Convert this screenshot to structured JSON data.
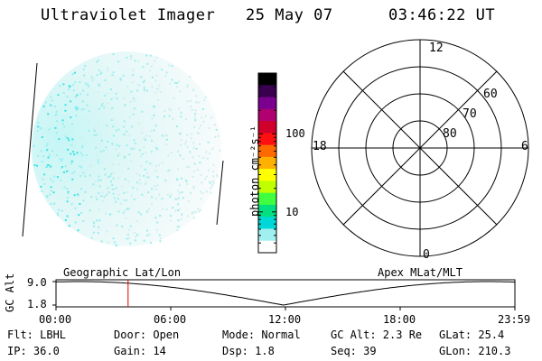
{
  "header": {
    "instrument": "Ultraviolet Imager",
    "date": "25 May 07",
    "time": "03:46:22 UT"
  },
  "colorbar": {
    "label": "photon cm⁻²s⁻¹",
    "ticks": [
      {
        "value": 10,
        "label": "10"
      },
      {
        "value": 100,
        "label": "100"
      }
    ],
    "range": [
      3,
      600
    ],
    "colors": [
      "#000000",
      "#3a0050",
      "#7a0090",
      "#b00070",
      "#d0002a",
      "#ff1010",
      "#ff6a00",
      "#ffb000",
      "#ffff00",
      "#c0ff00",
      "#40ff40",
      "#00e080",
      "#00d8d8",
      "#a0f0f0",
      "#ffffff"
    ]
  },
  "polar_plot": {
    "mlt_labels": {
      "top": "12",
      "left": "18",
      "right": "6",
      "bottom": "0"
    },
    "lat_labels": [
      "60",
      "70",
      "80"
    ]
  },
  "timeline": {
    "left_label": "Geographic Lat/Lon",
    "right_label": "Apex MLat/MLT",
    "y_axis_title": "GC Alt",
    "y_ticks": [
      "9.0",
      "1.8"
    ],
    "x_ticks": [
      "00:00",
      "06:00",
      "12:00",
      "18:00",
      "23:59"
    ],
    "marker_hour": 3.77,
    "marker_color": "#e00000"
  },
  "info": {
    "flt": "Flt: LBHL",
    "ip": "IP: 36.0",
    "door": "Door: Open",
    "gain": "Gain: 14",
    "mode": "Mode: Normal",
    "dsp": "Dsp:    1.8",
    "gc_alt": "GC Alt: 2.3 Re",
    "seq": "Seq: 39",
    "glat": "GLat:  25.4",
    "glon": "GLon: 210.3"
  }
}
